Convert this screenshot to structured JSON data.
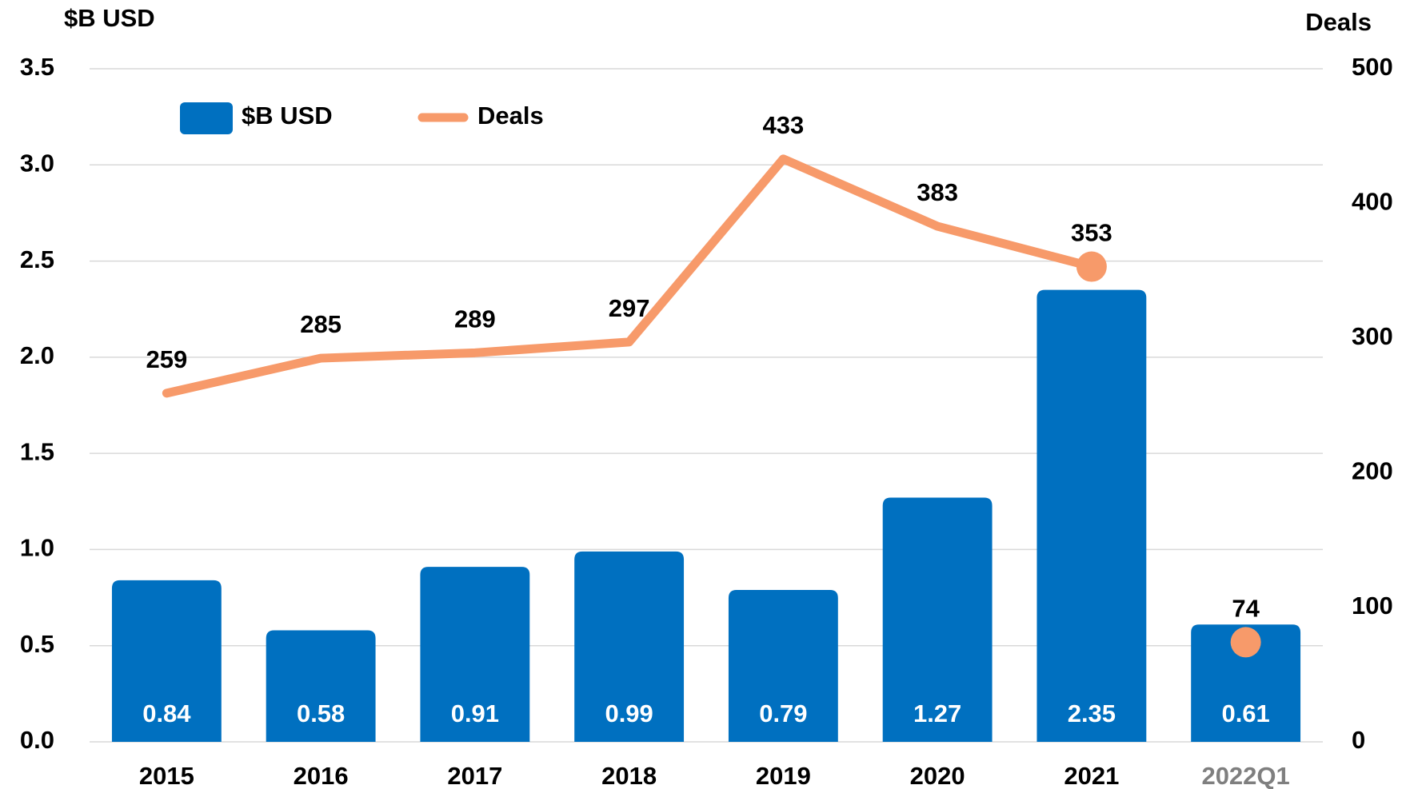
{
  "chart_data": {
    "type": "bar-line",
    "categories": [
      "2015",
      "2016",
      "2017",
      "2018",
      "2019",
      "2020",
      "2021",
      "2022Q1"
    ],
    "y_axis_label": "$B USD",
    "y2_axis_label": "Deals",
    "series": [
      {
        "name": "$B USD",
        "color": "#0070c0",
        "type": "bar",
        "values": [
          0.84,
          0.58,
          0.91,
          0.99,
          0.79,
          1.27,
          2.35,
          0.61
        ]
      },
      {
        "name": "Deals",
        "color": "#f79a6a",
        "type": "line",
        "axis": "y2",
        "values": [
          259,
          285,
          289,
          297,
          433,
          383,
          353,
          74
        ]
      }
    ],
    "ylim": [
      0,
      3.5
    ],
    "yticks": [
      {
        "value": 0,
        "label": "0.0"
      },
      0.5,
      {
        "value": 1,
        "label": "1.0"
      },
      1.5,
      {
        "value": 2,
        "label": "2.0"
      },
      2.5,
      {
        "value": 3,
        "label": "3.0"
      },
      3.5
    ],
    "y2lim": [
      0,
      500
    ],
    "y2ticks": [
      0,
      100,
      200,
      300,
      400,
      500
    ],
    "grid": true,
    "legend": "top-left"
  }
}
